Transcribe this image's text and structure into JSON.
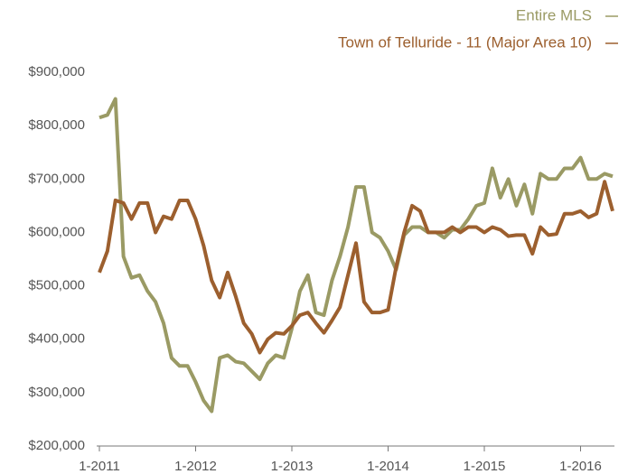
{
  "chart_data": {
    "type": "line",
    "categories": [
      "1-2011",
      null,
      null,
      null,
      null,
      null,
      null,
      null,
      null,
      null,
      null,
      null,
      "1-2012",
      null,
      null,
      null,
      null,
      null,
      null,
      null,
      null,
      null,
      null,
      null,
      "1-2013",
      null,
      null,
      null,
      null,
      null,
      null,
      null,
      null,
      null,
      null,
      null,
      "1-2014",
      null,
      null,
      null,
      null,
      null,
      null,
      null,
      null,
      null,
      null,
      null,
      "1-2015",
      null,
      null,
      null,
      null,
      null,
      null,
      null,
      null,
      null,
      null,
      null,
      "1-2016",
      null,
      null,
      null,
      null
    ],
    "series": [
      {
        "name": "Entire MLS",
        "color": "#9a9a64",
        "values": [
          815000,
          820000,
          850000,
          555000,
          515000,
          520000,
          490000,
          470000,
          430000,
          365000,
          350000,
          350000,
          320000,
          285000,
          265000,
          365000,
          370000,
          358000,
          355000,
          340000,
          325000,
          355000,
          370000,
          365000,
          420000,
          490000,
          520000,
          450000,
          445000,
          510000,
          555000,
          610000,
          685000,
          685000,
          600000,
          590000,
          565000,
          530000,
          595000,
          610000,
          610000,
          600000,
          600000,
          590000,
          605000,
          605000,
          625000,
          650000,
          655000,
          720000,
          665000,
          700000,
          650000,
          690000,
          635000,
          710000,
          700000,
          700000,
          720000,
          720000,
          740000,
          700000,
          700000,
          710000,
          705000
        ]
      },
      {
        "name": "Town of Telluride - 11 (Major Area 10)",
        "color": "#9c5f2e",
        "values": [
          525000,
          565000,
          660000,
          655000,
          625000,
          655000,
          655000,
          600000,
          630000,
          625000,
          660000,
          660000,
          625000,
          575000,
          510000,
          478000,
          525000,
          480000,
          430000,
          410000,
          375000,
          400000,
          412000,
          410000,
          425000,
          445000,
          450000,
          430000,
          412000,
          435000,
          460000,
          520000,
          580000,
          470000,
          450000,
          450000,
          455000,
          535000,
          600000,
          650000,
          640000,
          600000,
          600000,
          600000,
          610000,
          600000,
          610000,
          610000,
          600000,
          610000,
          605000,
          593000,
          595000,
          595000,
          560000,
          610000,
          595000,
          597000,
          635000,
          635000,
          640000,
          628000,
          635000,
          695000,
          640000
        ]
      }
    ],
    "ylim": [
      200000,
      900000
    ],
    "yticks": [
      {
        "value": 200000,
        "label": "$200,000"
      },
      {
        "value": 300000,
        "label": "$300,000"
      },
      {
        "value": 400000,
        "label": "$400,000"
      },
      {
        "value": 500000,
        "label": "$500,000"
      },
      {
        "value": 600000,
        "label": "$600,000"
      },
      {
        "value": 700000,
        "label": "$700,000"
      },
      {
        "value": 800000,
        "label": "$800,000"
      },
      {
        "value": 900000,
        "label": "$900,000"
      }
    ],
    "legend": "top-right"
  }
}
